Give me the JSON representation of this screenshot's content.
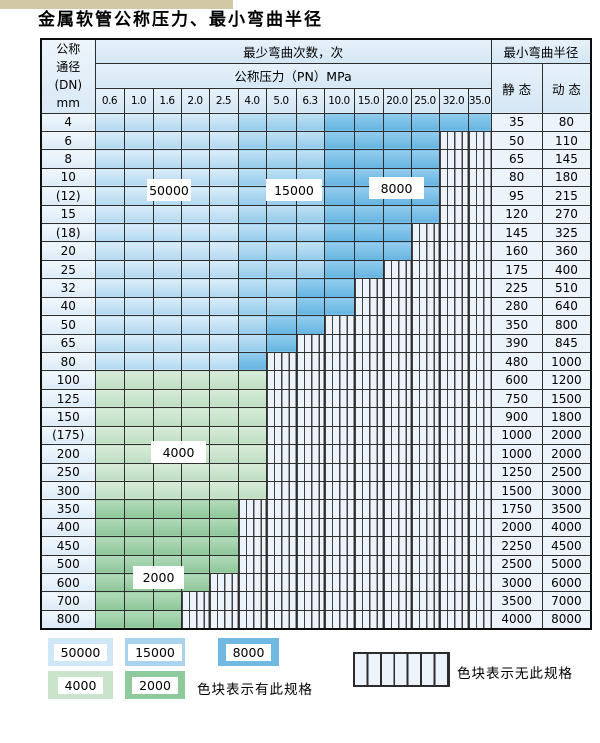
{
  "title": "金属软管公称压力、最小弯曲半径",
  "table": {
    "dn_header_lines": [
      "公称",
      "通径",
      "(DN)",
      "mm"
    ],
    "cycles_header": "最少弯曲次数，次",
    "pressure_header": "公称压力（PN）MPa",
    "radius_header": "最小弯曲半径",
    "static_header": "静 态",
    "dynamic_header": "动 态",
    "pressures": [
      "0.6",
      "1.0",
      "1.6",
      "2.0",
      "2.5",
      "4.0",
      "5.0",
      "6.3",
      "10.0",
      "15.0",
      "20.0",
      "25.0",
      "32.0",
      "35.0"
    ],
    "rows": [
      {
        "dn": "4",
        "pattern": "AAAAABBBCCCCCC",
        "static": "35",
        "dynamic": "80"
      },
      {
        "dn": "6",
        "pattern": "AAAAABBBCCCCXX",
        "static": "50",
        "dynamic": "110"
      },
      {
        "dn": "8",
        "pattern": "AAAAABBBCCCCXX",
        "static": "65",
        "dynamic": "145"
      },
      {
        "dn": "10",
        "pattern": "AAAAABBBCCCCXX",
        "static": "80",
        "dynamic": "180"
      },
      {
        "dn": "(12)",
        "pattern": "AAAAABBBCCCCXX",
        "static": "95",
        "dynamic": "215"
      },
      {
        "dn": "15",
        "pattern": "AAAAABBBCCCCXX",
        "static": "120",
        "dynamic": "270"
      },
      {
        "dn": "(18)",
        "pattern": "AAAAABBBCCCXXX",
        "static": "145",
        "dynamic": "325"
      },
      {
        "dn": "20",
        "pattern": "AAAAABBBCCCXXX",
        "static": "160",
        "dynamic": "360"
      },
      {
        "dn": "25",
        "pattern": "AAAAABBBCCXXXX",
        "static": "175",
        "dynamic": "400"
      },
      {
        "dn": "32",
        "pattern": "AAAAABBCCXXXXX",
        "static": "225",
        "dynamic": "510"
      },
      {
        "dn": "40",
        "pattern": "AAAAABBCCXXXXX",
        "static": "280",
        "dynamic": "640"
      },
      {
        "dn": "50",
        "pattern": "AAAAABCCXXXXXX",
        "static": "350",
        "dynamic": "800"
      },
      {
        "dn": "65",
        "pattern": "AAAAABCXXXXXXX",
        "static": "390",
        "dynamic": "845"
      },
      {
        "dn": "80",
        "pattern": "AAAAACXXXXXXXX",
        "static": "480",
        "dynamic": "1000"
      },
      {
        "dn": "100",
        "pattern": "DDDDDDXXXXXXXX",
        "static": "600",
        "dynamic": "1200"
      },
      {
        "dn": "125",
        "pattern": "DDDDDDXXXXXXXX",
        "static": "750",
        "dynamic": "1500"
      },
      {
        "dn": "150",
        "pattern": "DDDDDDXXXXXXXX",
        "static": "900",
        "dynamic": "1800"
      },
      {
        "dn": "(175)",
        "pattern": "DDDDDDXXXXXXXX",
        "static": "1000",
        "dynamic": "2000"
      },
      {
        "dn": "200",
        "pattern": "DDDDDDXXXXXXXX",
        "static": "1000",
        "dynamic": "2000"
      },
      {
        "dn": "250",
        "pattern": "DDDDDDXXXXXXXX",
        "static": "1250",
        "dynamic": "2500"
      },
      {
        "dn": "300",
        "pattern": "DDDDDDXXXXXXXX",
        "static": "1500",
        "dynamic": "3000"
      },
      {
        "dn": "350",
        "pattern": "EEEEEXXXXXXXXX",
        "static": "1750",
        "dynamic": "3500"
      },
      {
        "dn": "400",
        "pattern": "EEEEEXXXXXXXXX",
        "static": "2000",
        "dynamic": "4000"
      },
      {
        "dn": "450",
        "pattern": "EEEEEXXXXXXXXX",
        "static": "2250",
        "dynamic": "4500"
      },
      {
        "dn": "500",
        "pattern": "EEEEEXXXXXXXXX",
        "static": "2500",
        "dynamic": "5000"
      },
      {
        "dn": "600",
        "pattern": "EEEEXXXXXXXXXX",
        "static": "3000",
        "dynamic": "6000"
      },
      {
        "dn": "700",
        "pattern": "EEEXXXXXXXXXXX",
        "static": "3500",
        "dynamic": "7000"
      },
      {
        "dn": "800",
        "pattern": "EEEXXXXXXXXXXX",
        "static": "4000",
        "dynamic": "8000"
      }
    ]
  },
  "cycle_levels": {
    "A": "50000",
    "B": "15000",
    "C": "8000",
    "D": "4000",
    "E": "2000",
    "X": "无此规格"
  },
  "overlay_labels": {
    "b50000": "50000",
    "b15000": "15000",
    "b8000": "8000",
    "g4000": "4000",
    "g2000": "2000"
  },
  "legend": {
    "items": [
      {
        "value": "50000"
      },
      {
        "value": "15000"
      },
      {
        "value": "8000"
      },
      {
        "value": "4000"
      },
      {
        "value": "2000"
      }
    ],
    "has_spec_text": "色块表示有此规格",
    "no_spec_text": "色块表示无此规格"
  },
  "colors": {
    "blue_50000": "#cce4f6",
    "blue_15000": "#a9d3ef",
    "blue_8000": "#7fc2e7",
    "green_4000": "#cbe4cd",
    "green_2000": "#a0d1aa",
    "no_spec_bg": "#edf3fa",
    "top_strip": "#d2c8a6"
  }
}
